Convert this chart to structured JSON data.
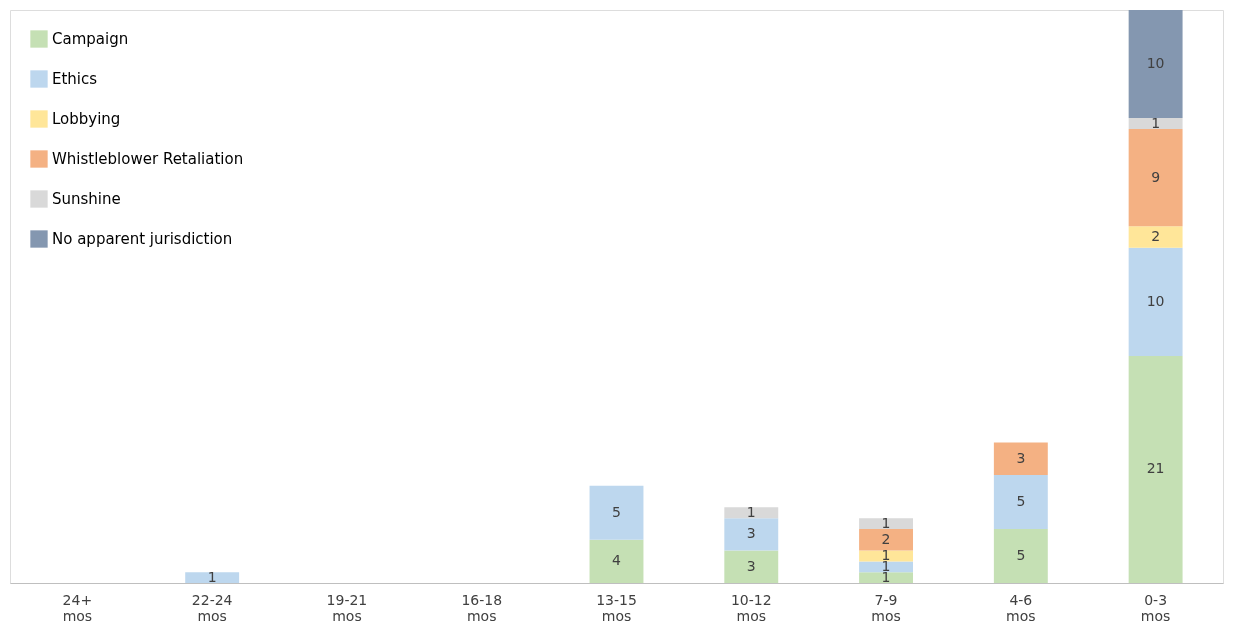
{
  "chart_data": {
    "type": "bar",
    "stacked": true,
    "data_labels": true,
    "legend": "top left",
    "grid": false,
    "categories": [
      "24+ mos",
      "22-24 mos",
      "19-21 mos",
      "16-18 mos",
      "13-15 mos",
      "10-12 mos",
      "7-9 mos",
      "4-6 mos",
      "0-3 mos"
    ],
    "series": [
      {
        "name": "Campaign",
        "color": "#c5e0b4",
        "values": [
          null,
          null,
          null,
          null,
          4,
          3,
          1,
          5,
          21
        ]
      },
      {
        "name": "Ethics",
        "color": "#bdd7ee",
        "values": [
          null,
          1,
          null,
          null,
          5,
          3,
          1,
          5,
          10
        ]
      },
      {
        "name": "Lobbying",
        "color": "#ffe699",
        "values": [
          null,
          null,
          null,
          null,
          null,
          null,
          1,
          null,
          2
        ]
      },
      {
        "name": "Whistleblower Retaliation",
        "color": "#f4b183",
        "values": [
          null,
          null,
          null,
          null,
          null,
          null,
          2,
          3,
          9
        ]
      },
      {
        "name": "Sunshine",
        "color": "#d9d9d9",
        "values": [
          null,
          null,
          null,
          null,
          null,
          1,
          1,
          null,
          1
        ]
      },
      {
        "name": "No apparent jurisdiction",
        "color": "#8497b0",
        "values": [
          null,
          null,
          null,
          null,
          null,
          null,
          null,
          null,
          10
        ]
      }
    ]
  }
}
